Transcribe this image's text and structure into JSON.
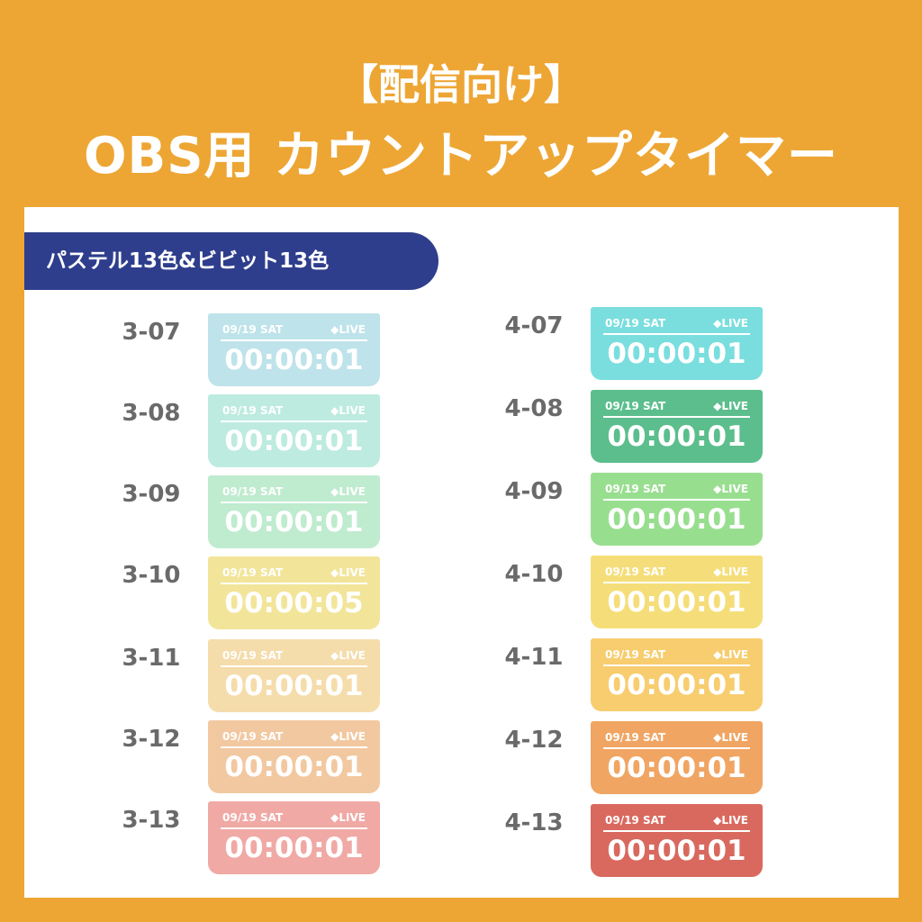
{
  "header": {
    "title": "【配信向け】",
    "subtitle": "OBS用 カウントアップタイマー"
  },
  "badge": "パステル13色&ビビット13色",
  "columns": [
    {
      "items": [
        {
          "code": "3-07",
          "date": "09/19 SAT",
          "live": "◆LIVE",
          "time": "00:00:01",
          "color": "#BEE3EA"
        },
        {
          "code": "3-08",
          "date": "09/19 SAT",
          "live": "◆LIVE",
          "time": "00:00:01",
          "color": "#BDEBDF"
        },
        {
          "code": "3-09",
          "date": "09/19 SAT",
          "live": "◆LIVE",
          "time": "00:00:01",
          "color": "#BFEBCF"
        },
        {
          "code": "3-10",
          "date": "09/19 SAT",
          "live": "◆LIVE",
          "time": "00:00:05",
          "color": "#F2E59A"
        },
        {
          "code": "3-11",
          "date": "09/19 SAT",
          "live": "◆LIVE",
          "time": "00:00:01",
          "color": "#F5DCAB"
        },
        {
          "code": "3-12",
          "date": "09/19 SAT",
          "live": "◆LIVE",
          "time": "00:00:01",
          "color": "#F2C8A0"
        },
        {
          "code": "3-13",
          "date": "09/19 SAT",
          "live": "◆LIVE",
          "time": "00:00:01",
          "color": "#F0A9A5"
        }
      ]
    },
    {
      "items": [
        {
          "code": "4-07",
          "date": "09/19 SAT",
          "live": "◆LIVE",
          "time": "00:00:01",
          "color": "#7ADEDE"
        },
        {
          "code": "4-08",
          "date": "09/19 SAT",
          "live": "◆LIVE",
          "time": "00:00:01",
          "color": "#5BBE8C"
        },
        {
          "code": "4-09",
          "date": "09/19 SAT",
          "live": "◆LIVE",
          "time": "00:00:01",
          "color": "#98DE8F"
        },
        {
          "code": "4-10",
          "date": "09/19 SAT",
          "live": "◆LIVE",
          "time": "00:00:01",
          "color": "#F5DE79"
        },
        {
          "code": "4-11",
          "date": "09/19 SAT",
          "live": "◆LIVE",
          "time": "00:00:01",
          "color": "#F7CD6F"
        },
        {
          "code": "4-12",
          "date": "09/19 SAT",
          "live": "◆LIVE",
          "time": "00:00:01",
          "color": "#F0A563"
        },
        {
          "code": "4-13",
          "date": "09/19 SAT",
          "live": "◆LIVE",
          "time": "00:00:01",
          "color": "#D9695F"
        }
      ]
    }
  ]
}
